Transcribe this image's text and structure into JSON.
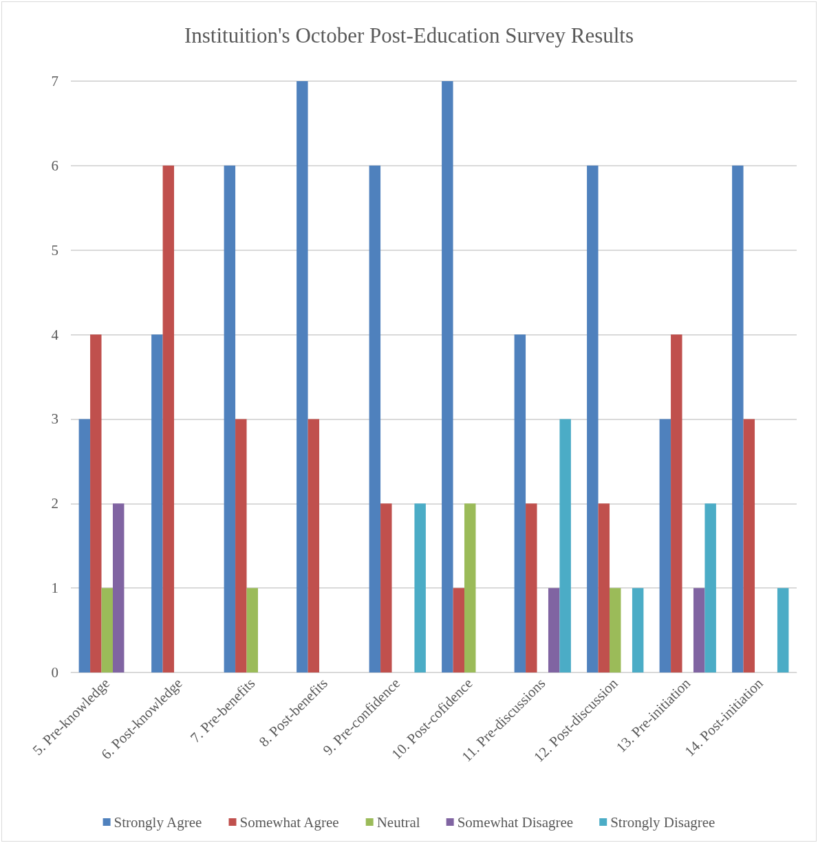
{
  "chart_data": {
    "type": "bar",
    "title": "Instituition's October Post-Education Survey Results",
    "categories": [
      "5. Pre-knowledge",
      "6. Post-knowledge",
      "7. Pre-benefits",
      "8. Post-benefits",
      "9. Pre-confidence",
      "10. Post-cofidence",
      "11. Pre-discussions",
      "12. Post-discussion",
      "13. Pre-initiation",
      "14. Post-initiation"
    ],
    "series": [
      {
        "name": "Strongly Agree",
        "color": "#4f81bd",
        "values": [
          3,
          4,
          6,
          7,
          6,
          7,
          4,
          6,
          3,
          6
        ]
      },
      {
        "name": "Somewhat Agree",
        "color": "#c0504d",
        "values": [
          4,
          6,
          3,
          3,
          2,
          1,
          2,
          2,
          4,
          3
        ]
      },
      {
        "name": "Neutral",
        "color": "#9bbb59",
        "values": [
          1,
          0,
          1,
          0,
          0,
          2,
          0,
          1,
          0,
          0
        ]
      },
      {
        "name": "Somewhat Disagree",
        "color": "#8064a2",
        "values": [
          2,
          0,
          0,
          0,
          0,
          0,
          1,
          0,
          1,
          0
        ]
      },
      {
        "name": "Strongly Disagree",
        "color": "#4bacc6",
        "values": [
          0,
          0,
          0,
          0,
          2,
          0,
          3,
          1,
          2,
          1
        ]
      }
    ],
    "ylim": [
      0,
      7
    ],
    "yticks": [
      0,
      1,
      2,
      3,
      4,
      5,
      6,
      7
    ],
    "grid": "y",
    "legend": "bottom"
  }
}
